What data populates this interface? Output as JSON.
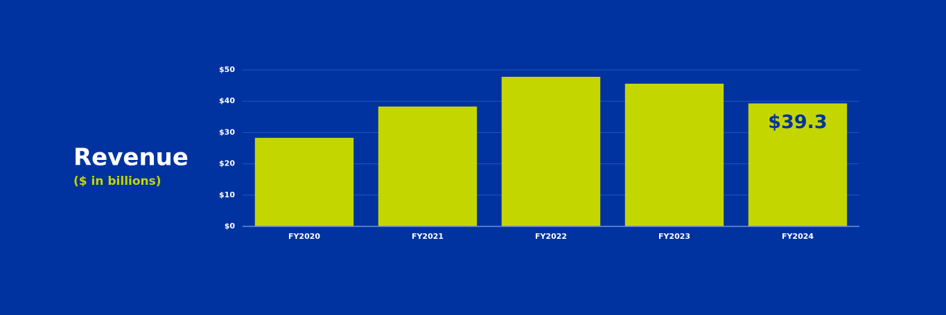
{
  "chart_data": {
    "type": "bar",
    "title": "Revenue",
    "subtitle": "($ in billions)",
    "categories": [
      "FY2020",
      "FY2021",
      "FY2022",
      "FY2023",
      "FY2024"
    ],
    "values": [
      28.3,
      38.3,
      47.8,
      45.6,
      39.3
    ],
    "value_labels": [
      null,
      null,
      null,
      null,
      "$39.3"
    ],
    "color": "#c4d600",
    "ylim": [
      0,
      50
    ],
    "yticks": [
      {
        "value": 0,
        "label": "$0"
      },
      {
        "value": 10,
        "label": "$10"
      },
      {
        "value": 20,
        "label": "$20"
      },
      {
        "value": 30,
        "label": "$30"
      },
      {
        "value": 40,
        "label": "$40"
      },
      {
        "value": 50,
        "label": "$50"
      }
    ],
    "grid": true
  }
}
